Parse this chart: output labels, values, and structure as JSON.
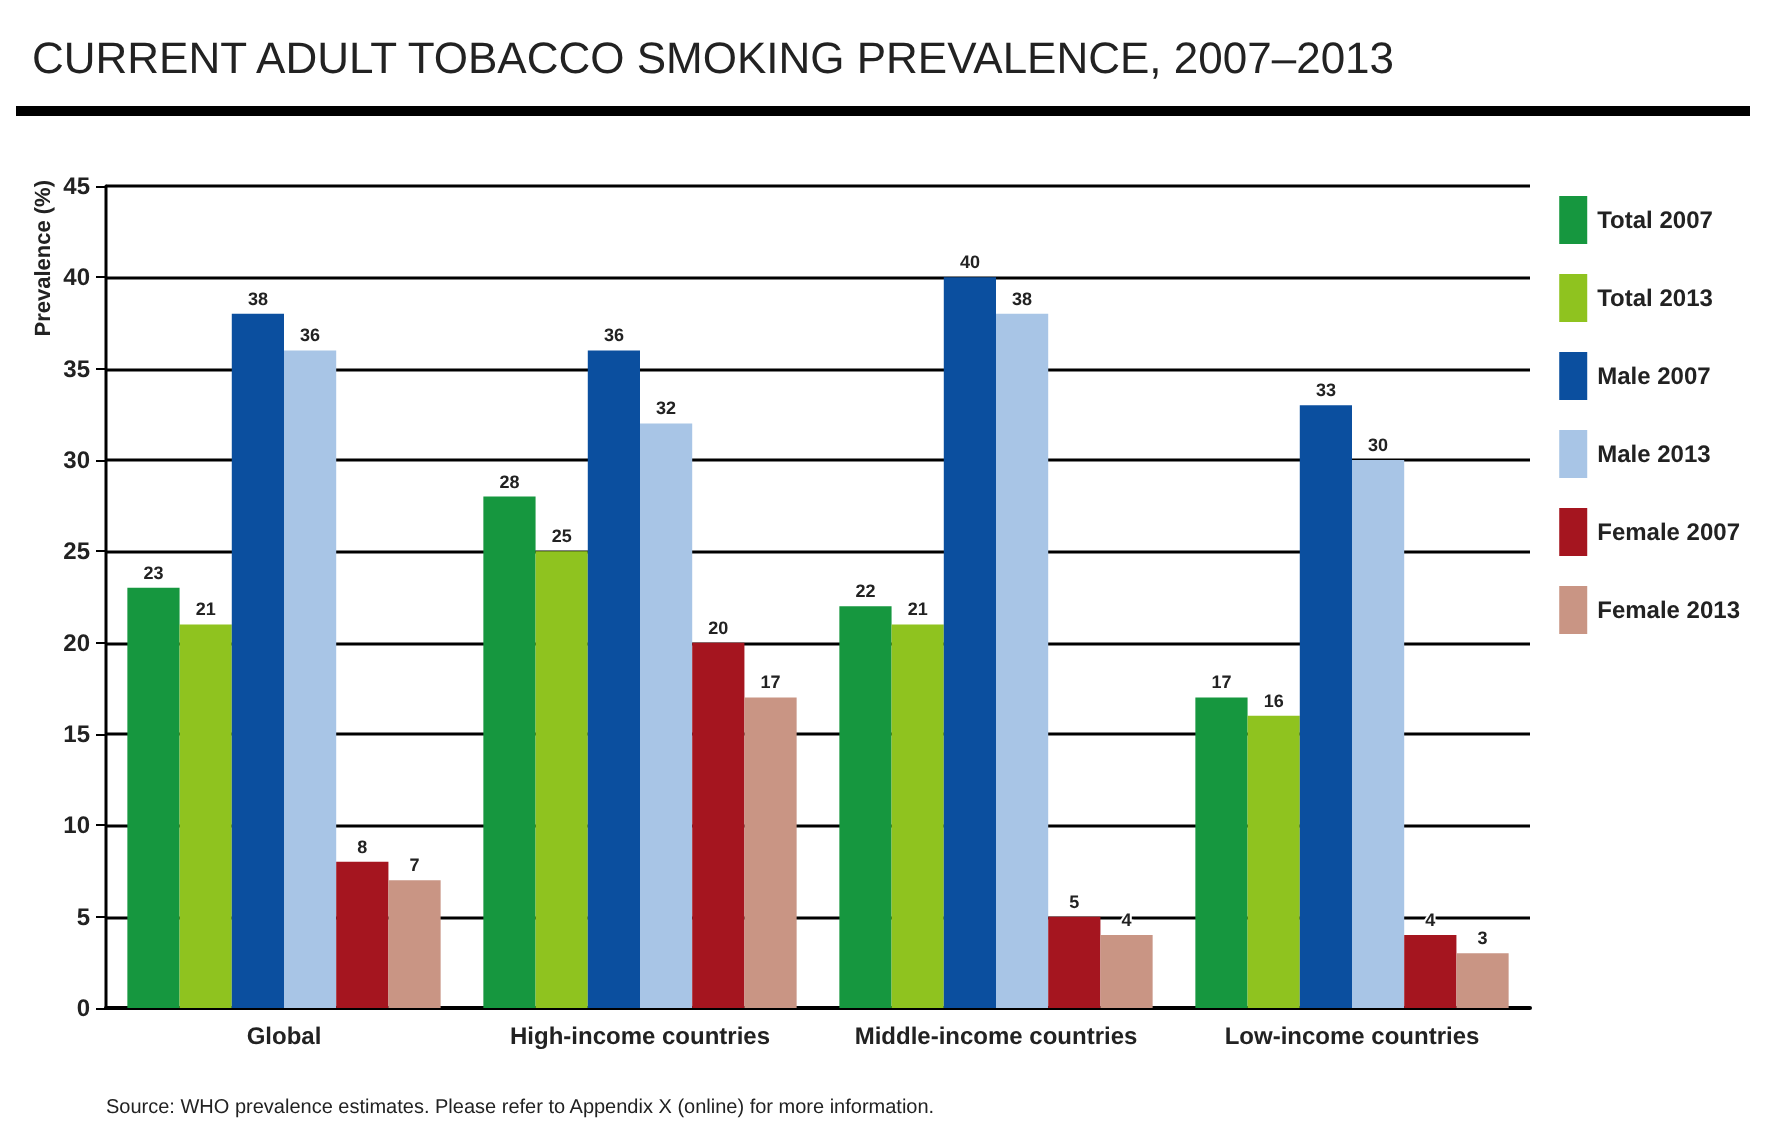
{
  "chart_data": {
    "type": "bar",
    "title": "CURRENT ADULT TOBACCO SMOKING PREVALENCE, 2007–2013",
    "ylabel": "Prevalence (%)",
    "categories": [
      "Global",
      "High-income countries",
      "Middle-income countries",
      "Low-income countries"
    ],
    "series": [
      {
        "name": "Total 2007",
        "color": "#16973f",
        "values": [
          23,
          28,
          22,
          17
        ]
      },
      {
        "name": "Total 2013",
        "color": "#8fc31f",
        "values": [
          21,
          25,
          21,
          16
        ]
      },
      {
        "name": "Male 2007",
        "color": "#0b4f9f",
        "values": [
          38,
          36,
          40,
          33
        ]
      },
      {
        "name": "Male 2013",
        "color": "#a8c5e6",
        "values": [
          36,
          32,
          38,
          30
        ]
      },
      {
        "name": "Female 2007",
        "color": "#a5151f",
        "values": [
          8,
          20,
          5,
          4
        ]
      },
      {
        "name": "Female 2013",
        "color": "#c99584",
        "values": [
          7,
          17,
          4,
          3
        ]
      }
    ],
    "ylim": [
      0,
      45
    ],
    "yticks": [
      0,
      5,
      10,
      15,
      20,
      25,
      30,
      35,
      40,
      45
    ],
    "grid": "y",
    "legend": "right",
    "data_labels": true,
    "annotations": [
      "Source: WHO prevalence estimates. Please refer to Appendix X (online) for more information."
    ]
  }
}
